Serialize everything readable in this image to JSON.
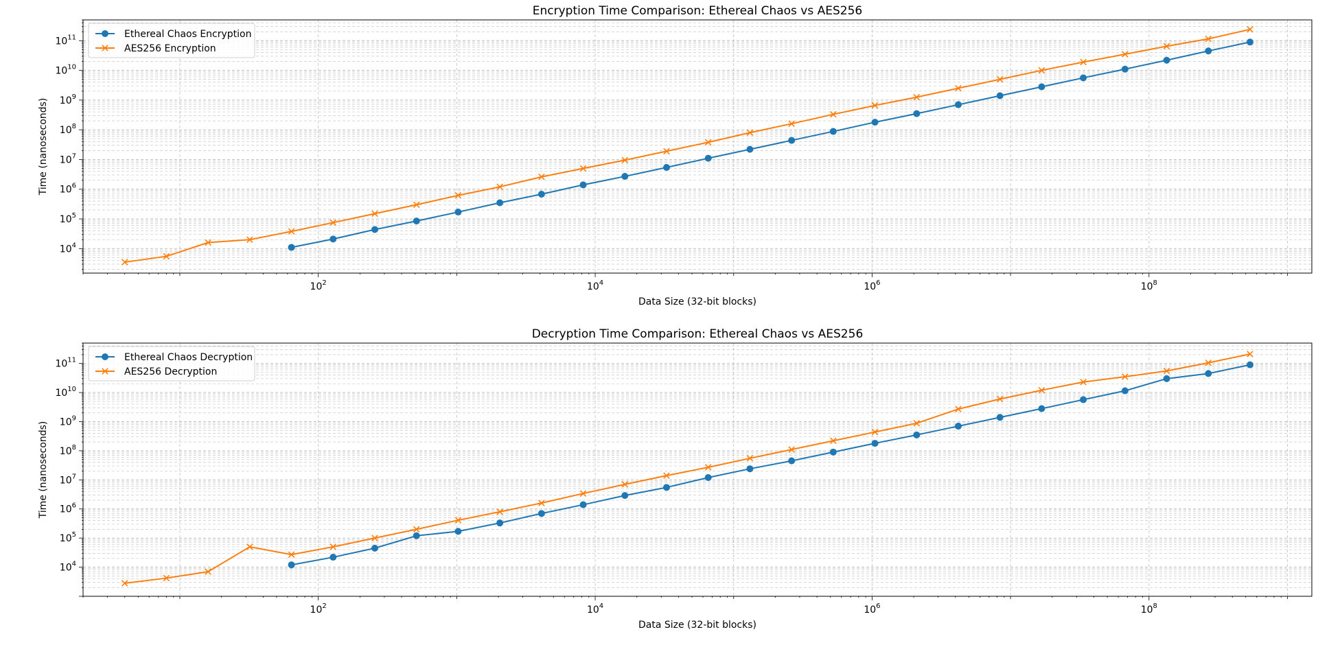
{
  "colors": {
    "blue": "#1f77b4",
    "orange": "#ff7f0e",
    "grid": "#b0b0b0"
  },
  "chart_data": [
    {
      "type": "line",
      "title": "Encryption Time Comparison: Ethereal Chaos vs AES256",
      "xlabel": "Data Size (32-bit blocks)",
      "ylabel": "Time (nanoseconds)",
      "x_scale": "log",
      "y_scale": "log",
      "xlim": [
        2,
        1500000000
      ],
      "ylim": [
        1500,
        500000000000
      ],
      "x_ticks": [
        {
          "base": "10",
          "exp": "2"
        },
        {
          "base": "10",
          "exp": "4"
        },
        {
          "base": "10",
          "exp": "6"
        },
        {
          "base": "10",
          "exp": "8"
        }
      ],
      "y_ticks": [
        {
          "base": "10",
          "exp": "4"
        },
        {
          "base": "10",
          "exp": "5"
        },
        {
          "base": "10",
          "exp": "6"
        },
        {
          "base": "10",
          "exp": "7"
        },
        {
          "base": "10",
          "exp": "8"
        },
        {
          "base": "10",
          "exp": "9"
        },
        {
          "base": "10",
          "exp": "10"
        },
        {
          "base": "10",
          "exp": "11"
        }
      ],
      "grid": true,
      "legend": "top-left",
      "series": [
        {
          "name": "Ethereal Chaos Encryption",
          "color": "#1f77b4",
          "marker": "circle",
          "x": [
            64,
            128,
            256,
            512,
            1024,
            2048,
            4096,
            8192,
            16384,
            32768,
            65536,
            131072,
            262144,
            524288,
            1048576,
            2097152,
            4194304,
            8388608,
            16777216,
            33554432,
            67108864,
            134217728,
            268435456,
            536870912
          ],
          "y": [
            11000,
            21000,
            44000,
            85000,
            170000,
            350000,
            680000,
            1400000,
            2700000,
            5400000,
            11000000,
            22000000,
            44000000,
            88000000,
            180000000,
            350000000,
            700000000,
            1400000000,
            2800000000,
            5600000000,
            11000000000,
            22000000000,
            45000000000,
            90000000000
          ]
        },
        {
          "name": "AES256 Encryption",
          "color": "#ff7f0e",
          "marker": "x",
          "x": [
            4,
            8,
            16,
            32,
            64,
            128,
            256,
            512,
            1024,
            2048,
            4096,
            8192,
            16384,
            32768,
            65536,
            131072,
            262144,
            524288,
            1048576,
            2097152,
            4194304,
            8388608,
            16777216,
            33554432,
            67108864,
            134217728,
            268435456,
            536870912
          ],
          "y": [
            3500,
            5500,
            16000,
            20000,
            38000,
            75000,
            150000,
            300000,
            620000,
            1200000,
            2600000,
            5000000,
            9500000,
            19000000,
            38000000,
            80000000,
            160000000,
            330000000,
            660000000,
            1250000000,
            2500000000,
            5000000000,
            10000000000,
            19000000000,
            35000000000,
            65000000000,
            115000000000,
            240000000000
          ]
        }
      ]
    },
    {
      "type": "line",
      "title": "Decryption Time Comparison: Ethereal Chaos vs AES256",
      "xlabel": "Data Size (32-bit blocks)",
      "ylabel": "Time (nanoseconds)",
      "x_scale": "log",
      "y_scale": "log",
      "xlim": [
        2,
        1500000000
      ],
      "ylim": [
        1000,
        500000000000
      ],
      "x_ticks": [
        {
          "base": "10",
          "exp": "2"
        },
        {
          "base": "10",
          "exp": "4"
        },
        {
          "base": "10",
          "exp": "6"
        },
        {
          "base": "10",
          "exp": "8"
        }
      ],
      "y_ticks": [
        {
          "base": "10",
          "exp": "4"
        },
        {
          "base": "10",
          "exp": "5"
        },
        {
          "base": "10",
          "exp": "6"
        },
        {
          "base": "10",
          "exp": "7"
        },
        {
          "base": "10",
          "exp": "8"
        },
        {
          "base": "10",
          "exp": "9"
        },
        {
          "base": "10",
          "exp": "10"
        },
        {
          "base": "10",
          "exp": "11"
        }
      ],
      "grid": true,
      "legend": "top-left",
      "series": [
        {
          "name": "Ethereal Chaos Decryption",
          "color": "#1f77b4",
          "marker": "circle",
          "x": [
            64,
            128,
            256,
            512,
            1024,
            2048,
            4096,
            8192,
            16384,
            32768,
            65536,
            131072,
            262144,
            524288,
            1048576,
            2097152,
            4194304,
            8388608,
            16777216,
            33554432,
            67108864,
            134217728,
            268435456,
            536870912
          ],
          "y": [
            12000,
            22000,
            45000,
            120000,
            170000,
            330000,
            700000,
            1400000,
            2900000,
            5500000,
            12000000,
            24000000,
            45000000,
            90000000,
            180000000,
            350000000,
            700000000,
            1400000000,
            2800000000,
            5700000000,
            11500000000,
            30000000000,
            45000000000,
            90000000000
          ]
        },
        {
          "name": "AES256 Decryption",
          "color": "#ff7f0e",
          "marker": "x",
          "x": [
            4,
            8,
            16,
            32,
            64,
            128,
            256,
            512,
            1024,
            2048,
            4096,
            8192,
            16384,
            32768,
            65536,
            131072,
            262144,
            524288,
            1048576,
            2097152,
            4194304,
            8388608,
            16777216,
            33554432,
            67108864,
            134217728,
            268435456,
            536870912
          ],
          "y": [
            2800,
            4200,
            7000,
            50000,
            27000,
            50000,
            100000,
            200000,
            410000,
            800000,
            1600000,
            3400000,
            7000000,
            14000000,
            27000000,
            55000000,
            110000000,
            220000000,
            440000000,
            880000000,
            2700000000,
            6000000000,
            12000000000,
            23000000000,
            35000000000,
            55000000000,
            105000000000,
            210000000000
          ]
        }
      ]
    }
  ]
}
